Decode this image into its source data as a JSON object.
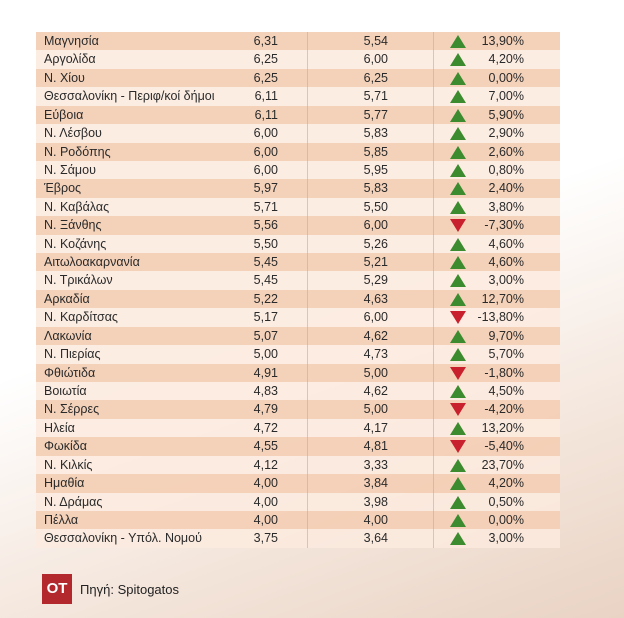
{
  "table": {
    "rows": [
      [
        "Μαγνησία",
        "6,31",
        "5,54",
        "13,90%"
      ],
      [
        "Αργολίδα",
        "6,25",
        "6,00",
        "4,20%"
      ],
      [
        "Ν. Χίου",
        "6,25",
        "6,25",
        "0,00%"
      ],
      [
        "Θεσσαλονίκη - Περιφ/κοί δήμοι",
        "6,11",
        "5,71",
        "7,00%"
      ],
      [
        "Εύβοια",
        "6,11",
        "5,77",
        "5,90%"
      ],
      [
        "Ν. Λέσβου",
        "6,00",
        "5,83",
        "2,90%"
      ],
      [
        "Ν. Ροδόπης",
        "6,00",
        "5,85",
        "2,60%"
      ],
      [
        "Ν. Σάμου",
        "6,00",
        "5,95",
        "0,80%"
      ],
      [
        "Έβρος",
        "5,97",
        "5,83",
        "2,40%"
      ],
      [
        "Ν. Καβάλας",
        "5,71",
        "5,50",
        "3,80%"
      ],
      [
        "Ν. Ξάνθης",
        "5,56",
        "6,00",
        "-7,30%"
      ],
      [
        "Ν. Κοζάνης",
        "5,50",
        "5,26",
        "4,60%"
      ],
      [
        "Αιτωλοακαρνανία",
        "5,45",
        "5,21",
        "4,60%"
      ],
      [
        "Ν. Τρικάλων",
        "5,45",
        "5,29",
        "3,00%"
      ],
      [
        "Αρκαδία",
        "5,22",
        "4,63",
        "12,70%"
      ],
      [
        "Ν. Καρδίτσας",
        "5,17",
        "6,00",
        "-13,80%"
      ],
      [
        "Λακωνία",
        "5,07",
        "4,62",
        "9,70%"
      ],
      [
        "Ν. Πιερίας",
        "5,00",
        "4,73",
        "5,70%"
      ],
      [
        "Φθιώτιδα",
        "4,91",
        "5,00",
        "-1,80%"
      ],
      [
        "Βοιωτία",
        "4,83",
        "4,62",
        "4,50%"
      ],
      [
        "Ν. Σέρρες",
        "4,79",
        "5,00",
        "-4,20%"
      ],
      [
        "Ηλεία",
        "4,72",
        "4,17",
        "13,20%"
      ],
      [
        "Φωκίδα",
        "4,55",
        "4,81",
        "-5,40%"
      ],
      [
        "Ν. Κιλκίς",
        "4,12",
        "3,33",
        "23,70%"
      ],
      [
        "Ημαθία",
        "4,00",
        "3,84",
        "4,20%"
      ],
      [
        "Ν. Δράμας",
        "4,00",
        "3,98",
        "0,50%"
      ],
      [
        "Πέλλα",
        "4,00",
        "4,00",
        "0,00%"
      ],
      [
        "Θεσσαλονίκη - Υπόλ. Νομού",
        "3,75",
        "3,64",
        "3,00%"
      ]
    ]
  },
  "footer": {
    "logo": "OT",
    "source": "Πηγή: Spitogatos"
  }
}
